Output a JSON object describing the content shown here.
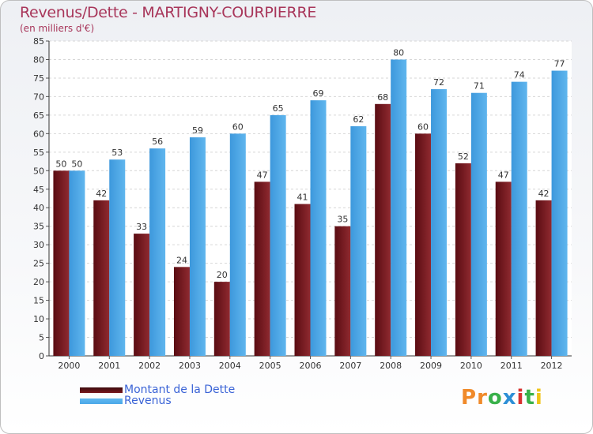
{
  "title": "Revenus/Dette - MARTIGNY-COURPIERRE",
  "subtitle": "(en milliers d'€)",
  "logo": {
    "text": "Proxiti",
    "colors": [
      "#f08a2a",
      "#f08a2a",
      "#39b14a",
      "#2d8fd6",
      "#d8312f",
      "#39b14a",
      "#f0c419"
    ]
  },
  "colors": {
    "dette": "#7a1a1f",
    "revenus": "#4aa7e8",
    "title": "#a8365a",
    "legend_text": "#3a63d6"
  },
  "chart_data": {
    "type": "bar",
    "title": "Revenus/Dette - MARTIGNY-COURPIERRE",
    "ylabel": "(en milliers d'€)",
    "xlabel": "",
    "categories": [
      "2000",
      "2001",
      "2002",
      "2003",
      "2004",
      "2005",
      "2006",
      "2007",
      "2008",
      "2009",
      "2010",
      "2011",
      "2012"
    ],
    "series": [
      {
        "name": "Montant de la Dette",
        "values": [
          50,
          42,
          33,
          24,
          20,
          47,
          41,
          35,
          68,
          60,
          52,
          47,
          42
        ]
      },
      {
        "name": "Revenus",
        "values": [
          50,
          53,
          56,
          59,
          60,
          65,
          69,
          62,
          80,
          72,
          71,
          74,
          77
        ]
      }
    ],
    "ylim": [
      0,
      85
    ],
    "ytick_step": 5,
    "grid": true,
    "legend_position": "bottom-left"
  }
}
